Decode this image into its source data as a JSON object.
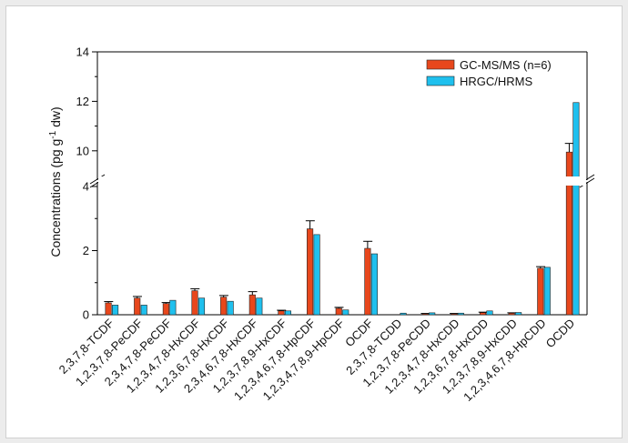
{
  "chart_data": {
    "type": "bar",
    "ylabel": "Concentrations (pg g",
    "ylabel_sup": "-1",
    "ylabel_tail": " dw)",
    "y_axis_break": [
      4,
      9
    ],
    "ylim_lower": [
      0,
      4
    ],
    "ylim_upper": [
      9,
      14
    ],
    "yticks_lower": [
      "0",
      "2",
      "4"
    ],
    "yticks_upper": [
      "10",
      "12",
      "14"
    ],
    "categories": [
      "2,3,7,8-TCDF",
      "1,2,3,7,8-PeCDF",
      "2,3,4,7,8-PeCDF",
      "1,2,3,4,7,8-HxCDF",
      "1,2,3,6,7,8-HxCDF",
      "2,3,4,6,7,8-HxCDF",
      "1,2,3,7,8,9-HxCDF",
      "1,2,3,4,6,7,8-HpCDF",
      "1,2,3,4,7,8,9-HpCDF",
      "OCDF",
      "2,3,7,8-TCDD",
      "1,2,3,7,8-PeCDD",
      "1,2,3,4,7,8-HxCDD",
      "1,2,3,6,7,8-HxCDD",
      "1,2,3,7,8,9-HxCDD",
      "1,2,3,4,6,7,8-HpCDD",
      "OCDD"
    ],
    "series": [
      {
        "name": "GC-MS/MS (n=6)",
        "color": "#e8471c",
        "values": [
          0.37,
          0.52,
          0.35,
          0.75,
          0.55,
          0.62,
          0.12,
          2.68,
          0.2,
          2.07,
          0.0,
          0.03,
          0.03,
          0.07,
          0.05,
          1.45,
          9.95
        ],
        "errors": [
          0.04,
          0.05,
          0.03,
          0.06,
          0.05,
          0.1,
          0.02,
          0.25,
          0.03,
          0.22,
          0.0,
          0.01,
          0.01,
          0.01,
          0.01,
          0.05,
          0.35
        ]
      },
      {
        "name": "HRGC/HRMS",
        "color": "#1fc0ee",
        "values": [
          0.3,
          0.3,
          0.45,
          0.52,
          0.42,
          0.52,
          0.12,
          2.5,
          0.15,
          1.9,
          0.05,
          0.06,
          0.05,
          0.12,
          0.07,
          1.48,
          11.95
        ]
      }
    ],
    "legend_position": "top-right",
    "grid": false
  }
}
